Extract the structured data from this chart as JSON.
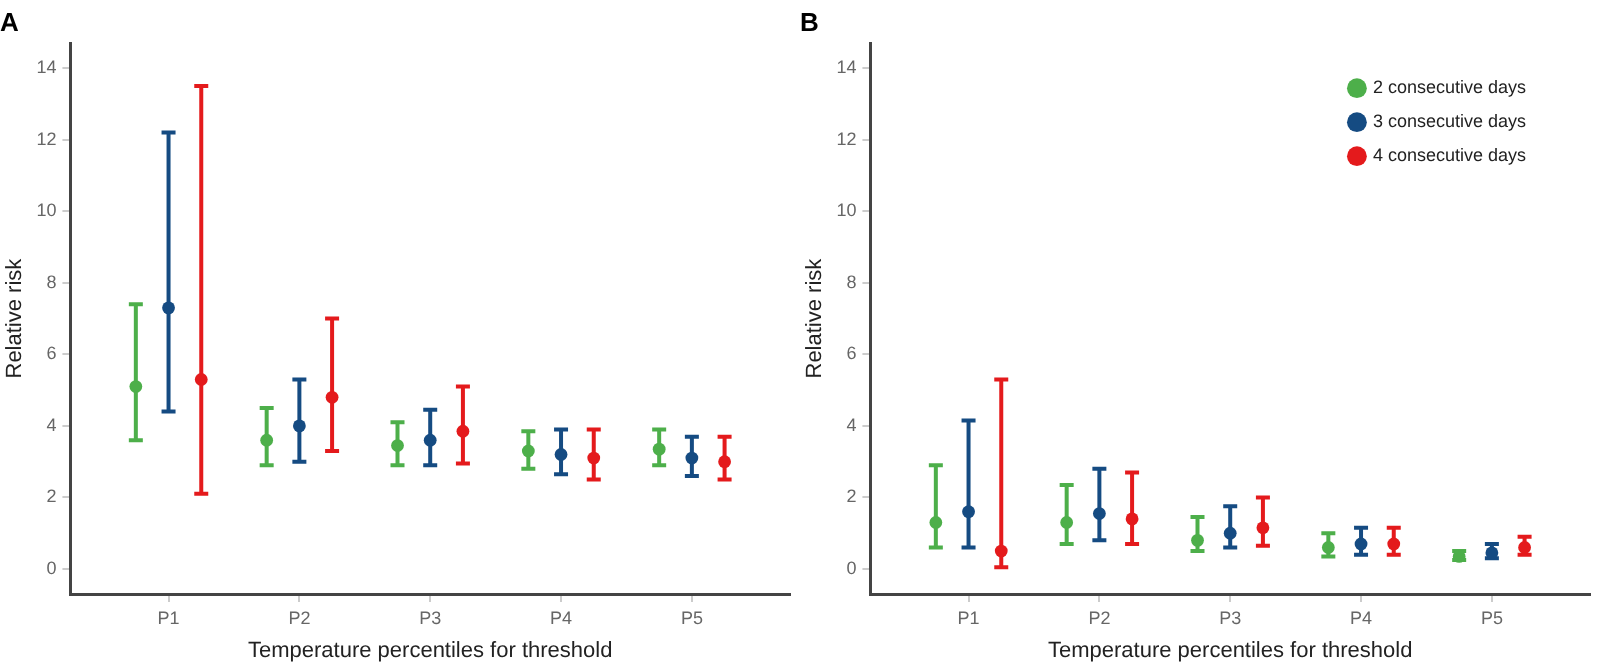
{
  "chart_data": [
    {
      "type": "scatter",
      "title": "A",
      "xlabel": "Temperature percentiles for threshold",
      "ylabel": "Relative risk",
      "categories": [
        "P1",
        "P2",
        "P3",
        "P4",
        "P5"
      ],
      "ylim": [
        -0.7,
        14.7
      ],
      "yticks": [
        0,
        2,
        4,
        6,
        8,
        10,
        12,
        14
      ],
      "grid": false,
      "legend": false,
      "marker": "circle",
      "series": [
        {
          "color": "#4daf4a",
          "values": [
            5.1,
            3.6,
            3.45,
            3.3,
            3.35
          ],
          "errors": [
            [
              3.6,
              7.4
            ],
            [
              2.9,
              4.5
            ],
            [
              2.9,
              4.1
            ],
            [
              2.8,
              3.85
            ],
            [
              2.9,
              3.9
            ]
          ]
        },
        {
          "color": "#154b82",
          "values": [
            7.3,
            4.0,
            3.6,
            3.2,
            3.1
          ],
          "errors": [
            [
              4.4,
              12.2
            ],
            [
              3.0,
              5.3
            ],
            [
              2.9,
              4.45
            ],
            [
              2.65,
              3.9
            ],
            [
              2.6,
              3.7
            ]
          ]
        },
        {
          "color": "#e41a1c",
          "values": [
            5.3,
            4.8,
            3.85,
            3.1,
            3.0
          ],
          "errors": [
            [
              2.1,
              13.5
            ],
            [
              3.3,
              7.0
            ],
            [
              2.95,
              5.1
            ],
            [
              2.5,
              3.9
            ],
            [
              2.5,
              3.7
            ]
          ]
        }
      ]
    },
    {
      "type": "scatter",
      "title": "B",
      "xlabel": "Temperature percentiles for threshold",
      "ylabel": "Relative risk",
      "categories": [
        "P1",
        "P2",
        "P3",
        "P4",
        "P5"
      ],
      "ylim": [
        -0.7,
        14.7
      ],
      "yticks": [
        0,
        2,
        4,
        6,
        8,
        10,
        12,
        14
      ],
      "grid": false,
      "legend": "top right",
      "marker": "circle",
      "series": [
        {
          "name": "2 consecutive days",
          "color": "#4daf4a",
          "values": [
            1.3,
            1.3,
            0.8,
            0.6,
            0.35
          ],
          "errors": [
            [
              0.6,
              2.9
            ],
            [
              0.7,
              2.35
            ],
            [
              0.5,
              1.45
            ],
            [
              0.35,
              1.0
            ],
            [
              0.25,
              0.5
            ]
          ]
        },
        {
          "name": "3 consecutive days",
          "color": "#154b82",
          "values": [
            1.6,
            1.55,
            1.0,
            0.7,
            0.45
          ],
          "errors": [
            [
              0.6,
              4.15
            ],
            [
              0.8,
              2.8
            ],
            [
              0.6,
              1.75
            ],
            [
              0.4,
              1.15
            ],
            [
              0.3,
              0.7
            ]
          ]
        },
        {
          "name": "4 consecutive days",
          "color": "#e41a1c",
          "values": [
            0.5,
            1.4,
            1.15,
            0.7,
            0.6
          ],
          "errors": [
            [
              0.05,
              5.3
            ],
            [
              0.7,
              2.7
            ],
            [
              0.65,
              2.0
            ],
            [
              0.4,
              1.15
            ],
            [
              0.4,
              0.9
            ]
          ]
        }
      ]
    }
  ]
}
